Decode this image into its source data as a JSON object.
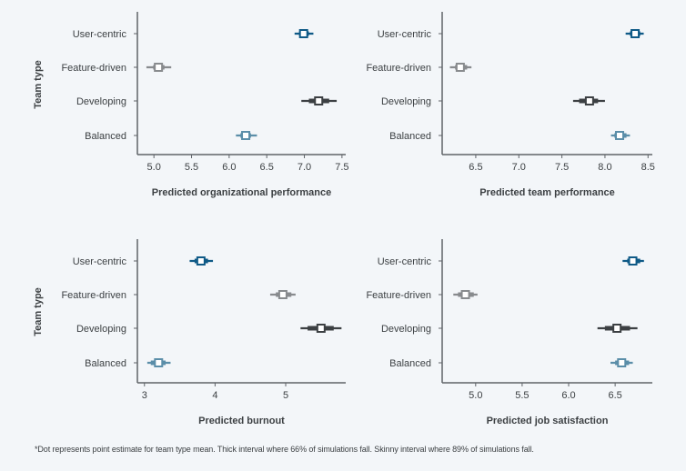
{
  "footnote": "*Dot represents point estimate for team type mean. Thick interval where 66% of simulations fall. Skinny interval where 89% of simulations fall.",
  "colors": {
    "User-centric": "#0f5a87",
    "Feature-driven": "#888b8e",
    "Developing": "#3c4043",
    "Balanced": "#5b8ea9",
    "axis": "#5f6368",
    "point_fill": "#ffffff"
  },
  "chart_data": [
    {
      "type": "interval",
      "title": "",
      "xlabel": "Predicted organizational performance",
      "ylabel": "Team type",
      "categories": [
        "User-centric",
        "Feature-driven",
        "Developing",
        "Balanced"
      ],
      "xlim": [
        4.78,
        7.55
      ],
      "xticks": [
        5.0,
        5.5,
        6.0,
        6.5,
        7.0,
        7.5
      ],
      "xtick_labels": [
        "5.0",
        "5.5",
        "6.0",
        "6.5",
        "7.0",
        "7.5"
      ],
      "series": [
        {
          "name": "User-centric",
          "point": 6.99,
          "thick": [
            6.93,
            7.06
          ],
          "thin": [
            6.87,
            7.12
          ]
        },
        {
          "name": "Feature-driven",
          "point": 5.06,
          "thick": [
            4.99,
            5.14
          ],
          "thin": [
            4.9,
            5.23
          ]
        },
        {
          "name": "Developing",
          "point": 7.19,
          "thick": [
            7.06,
            7.33
          ],
          "thin": [
            6.96,
            7.43
          ]
        },
        {
          "name": "Balanced",
          "point": 6.22,
          "thick": [
            6.15,
            6.29
          ],
          "thin": [
            6.09,
            6.37
          ]
        }
      ]
    },
    {
      "type": "interval",
      "title": "",
      "xlabel": "Predicted team performance",
      "ylabel": "",
      "categories": [
        "User-centric",
        "Feature-driven",
        "Developing",
        "Balanced"
      ],
      "xlim": [
        6.11,
        8.55
      ],
      "xticks": [
        6.5,
        7.0,
        7.5,
        8.0,
        8.5
      ],
      "xtick_labels": [
        "6.5",
        "7.0",
        "7.5",
        "8.0",
        "8.5"
      ],
      "series": [
        {
          "name": "User-centric",
          "point": 8.35,
          "thick": [
            8.29,
            8.41
          ],
          "thin": [
            8.24,
            8.45
          ]
        },
        {
          "name": "Feature-driven",
          "point": 6.32,
          "thick": [
            6.26,
            6.4
          ],
          "thin": [
            6.2,
            6.45
          ]
        },
        {
          "name": "Developing",
          "point": 7.82,
          "thick": [
            7.7,
            7.92
          ],
          "thin": [
            7.63,
            8.0
          ]
        },
        {
          "name": "Balanced",
          "point": 8.17,
          "thick": [
            8.11,
            8.25
          ],
          "thin": [
            8.07,
            8.29
          ]
        }
      ]
    },
    {
      "type": "interval",
      "title": "",
      "xlabel": "Predicted burnout",
      "ylabel": "Team type",
      "categories": [
        "User-centric",
        "Feature-driven",
        "Developing",
        "Balanced"
      ],
      "xlim": [
        2.9,
        5.85
      ],
      "xticks": [
        3,
        4,
        5
      ],
      "xtick_labels": [
        "3",
        "4",
        "5"
      ],
      "series": [
        {
          "name": "User-centric",
          "point": 3.8,
          "thick": [
            3.71,
            3.9
          ],
          "thin": [
            3.64,
            3.97
          ]
        },
        {
          "name": "Feature-driven",
          "point": 4.96,
          "thick": [
            4.86,
            5.08
          ],
          "thin": [
            4.78,
            5.14
          ]
        },
        {
          "name": "Developing",
          "point": 5.5,
          "thick": [
            5.31,
            5.68
          ],
          "thin": [
            5.21,
            5.79
          ]
        },
        {
          "name": "Balanced",
          "point": 3.2,
          "thick": [
            3.09,
            3.3
          ],
          "thin": [
            3.04,
            3.37
          ]
        }
      ]
    },
    {
      "type": "interval",
      "title": "",
      "xlabel": "Predicted job satisfaction",
      "ylabel": "",
      "categories": [
        "User-centric",
        "Feature-driven",
        "Developing",
        "Balanced"
      ],
      "xlim": [
        4.64,
        6.9
      ],
      "xticks": [
        5.0,
        5.5,
        6.0,
        6.5
      ],
      "xtick_labels": [
        "5.0",
        "5.5",
        "6.0",
        "6.5"
      ],
      "series": [
        {
          "name": "User-centric",
          "point": 6.69,
          "thick": [
            6.63,
            6.77
          ],
          "thin": [
            6.58,
            6.81
          ]
        },
        {
          "name": "Feature-driven",
          "point": 4.89,
          "thick": [
            4.81,
            4.98
          ],
          "thin": [
            4.76,
            5.02
          ]
        },
        {
          "name": "Developing",
          "point": 6.52,
          "thick": [
            6.39,
            6.66
          ],
          "thin": [
            6.31,
            6.74
          ]
        },
        {
          "name": "Balanced",
          "point": 6.57,
          "thick": [
            6.5,
            6.65
          ],
          "thin": [
            6.45,
            6.69
          ]
        }
      ]
    }
  ]
}
